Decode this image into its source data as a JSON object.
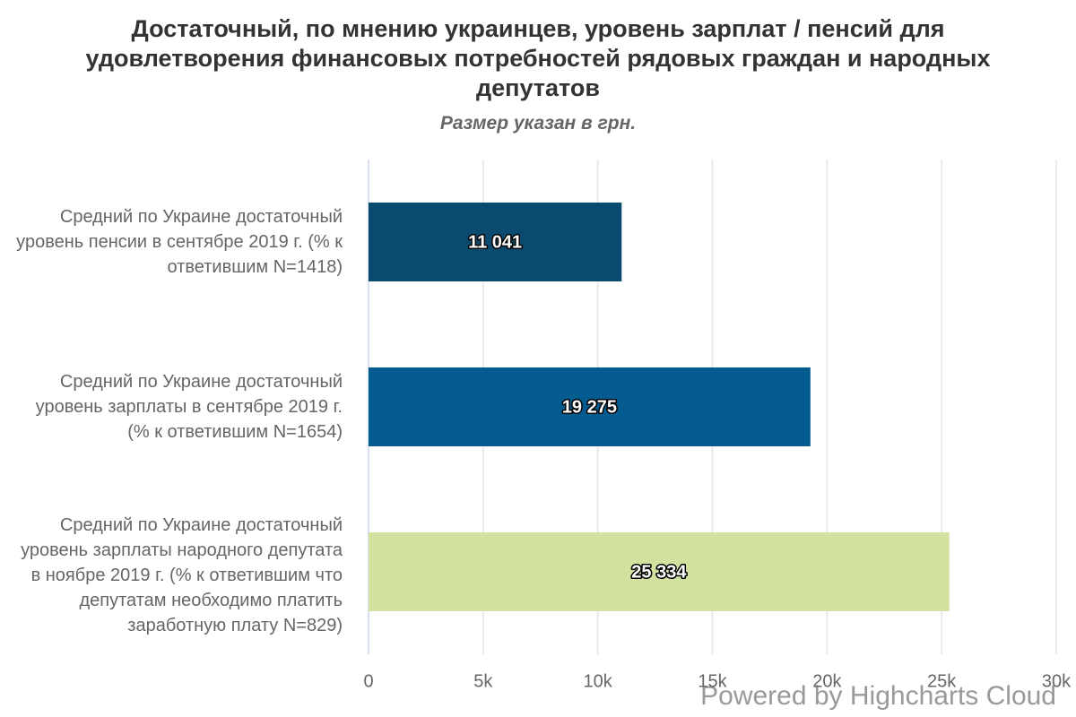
{
  "chart_data": {
    "type": "bar",
    "orientation": "horizontal",
    "title": "Достаточный, по мнению украинцев, уровень зарплат / пенсий для удовлетворения финансовых потребностей рядовых граждан и народных депутатов",
    "subtitle": "Размер указан в грн.",
    "categories": [
      "Средний по Украине достаточный уровень пенсии в сентябре 2019 г. (% к ответившим N=1418)",
      "Средний по Украине достаточный уровень зарплаты в сентябре 2019 г. (% к ответившим N=1654)",
      "Средний по Украине достаточный уровень зарплаты народного депутата в ноябре 2019 г. (% к ответившим что депутатам необходимо платить заработную плату N=829)"
    ],
    "values": [
      11041,
      19275,
      25334
    ],
    "value_labels": [
      "11 041",
      "19 275",
      "25 334"
    ],
    "colors": [
      "#0b4a6f",
      "#035b8f",
      "#d2e3a0"
    ],
    "xlim": [
      0,
      30000
    ],
    "xticks": [
      0,
      {
        "value": 5000,
        "label": "5k"
      },
      {
        "value": 10000,
        "label": "10k"
      },
      {
        "value": 15000,
        "label": "15k"
      },
      {
        "value": 20000,
        "label": "20k"
      },
      {
        "value": 25000,
        "label": "25k"
      },
      {
        "value": 30000,
        "label": "30k"
      }
    ],
    "grid": true,
    "credits": "Powered by Highcharts Cloud"
  }
}
